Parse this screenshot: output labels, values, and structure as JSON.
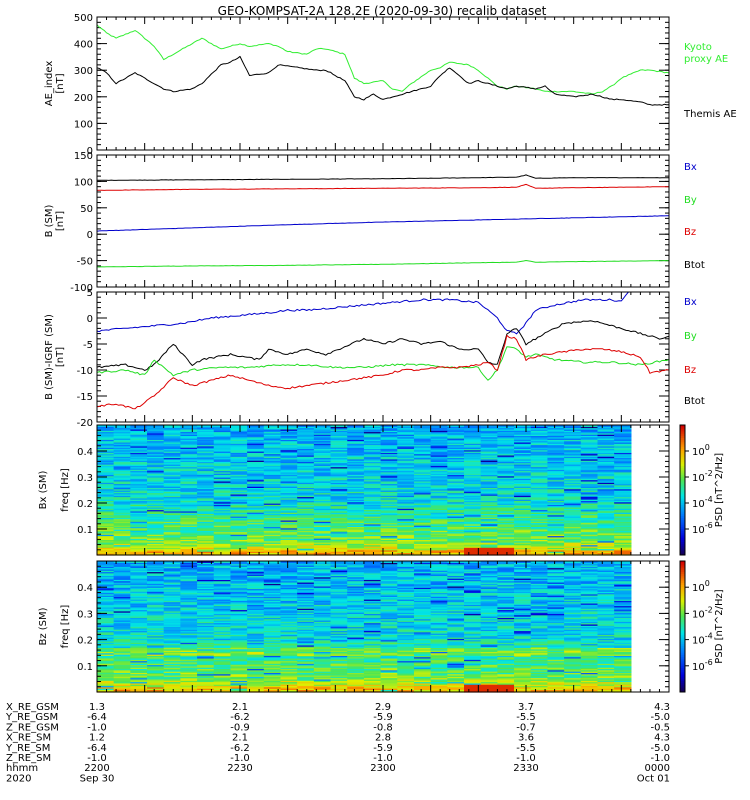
{
  "title": "GEO-KOMPSAT-2A 128.2E (2020-09-30) recalib dataset",
  "colors": {
    "black": "#000000",
    "green": "#22dd22",
    "red": "#dd0000",
    "blue": "#0000cc",
    "kyoto": "#33ee33"
  },
  "chart_data": [
    {
      "type": "line",
      "panel": "ae",
      "ylabel": "AE_index [nT]",
      "ylim": [
        0,
        500
      ],
      "yticks": [
        "0",
        "100",
        "200",
        "300",
        "400",
        "500"
      ],
      "x_minutes": [
        0,
        60
      ],
      "legend": [
        {
          "name": "Kyoto proxy AE",
          "lines": [
            "Kyoto",
            "proxy AE"
          ],
          "color": "#33ee33"
        },
        {
          "name": "Themis AE",
          "lines": [
            "Themis AE"
          ],
          "color": "#000000"
        }
      ],
      "series": [
        {
          "name": "Kyoto proxy AE",
          "color": "#33ee33",
          "x": [
            0,
            1,
            2,
            4,
            6,
            7,
            8,
            10,
            11,
            13,
            15,
            16,
            18,
            19,
            20,
            22,
            23,
            24,
            26,
            27,
            28,
            30,
            31,
            32,
            33,
            35,
            36,
            37,
            39,
            40,
            42,
            43,
            44,
            46,
            47,
            48,
            50,
            52,
            53,
            54,
            55,
            57,
            58,
            60
          ],
          "y": [
            470,
            440,
            420,
            450,
            390,
            340,
            360,
            400,
            420,
            380,
            400,
            390,
            400,
            390,
            370,
            360,
            380,
            380,
            360,
            270,
            250,
            260,
            230,
            220,
            250,
            300,
            310,
            330,
            320,
            300,
            240,
            230,
            240,
            230,
            220,
            220,
            220,
            210,
            220,
            240,
            270,
            300,
            300,
            290
          ]
        },
        {
          "name": "Themis AE",
          "color": "#000000",
          "x": [
            0,
            1,
            2,
            4,
            5,
            7,
            8,
            10,
            11,
            13,
            14,
            15,
            16,
            18,
            19,
            21,
            23,
            24,
            26,
            27,
            28,
            29,
            30,
            32,
            33,
            35,
            36,
            37,
            38,
            39,
            40,
            42,
            43,
            44,
            46,
            47,
            48,
            50,
            52,
            53,
            54,
            55,
            57,
            58,
            60
          ],
          "y": [
            310,
            290,
            250,
            290,
            270,
            230,
            220,
            230,
            250,
            320,
            330,
            350,
            280,
            290,
            320,
            310,
            300,
            300,
            260,
            200,
            190,
            210,
            190,
            210,
            220,
            240,
            280,
            310,
            280,
            250,
            260,
            240,
            230,
            240,
            230,
            240,
            210,
            200,
            210,
            200,
            190,
            190,
            180,
            170,
            170
          ]
        }
      ]
    },
    {
      "type": "line",
      "panel": "b",
      "ylabel": "B (SM) [nT]",
      "ylim": [
        -100,
        150
      ],
      "yticks": [
        "-100",
        "-50",
        "0",
        "50",
        "100",
        "150"
      ],
      "x_minutes": [
        0,
        60
      ],
      "legend": [
        {
          "name": "Bx",
          "lines": [
            "Bx"
          ],
          "color": "#0000cc"
        },
        {
          "name": "By",
          "lines": [
            "By"
          ],
          "color": "#22dd22"
        },
        {
          "name": "Bz",
          "lines": [
            "Bz"
          ],
          "color": "#dd0000"
        },
        {
          "name": "Btot",
          "lines": [
            "Btot"
          ],
          "color": "#000000"
        }
      ],
      "series": [
        {
          "name": "Btot",
          "color": "#000000",
          "x": [
            0,
            10,
            20,
            30,
            40,
            44,
            45,
            46,
            50,
            60
          ],
          "y": [
            102,
            103,
            104,
            105,
            107,
            108,
            112,
            106,
            107,
            107
          ]
        },
        {
          "name": "Bz",
          "color": "#dd0000",
          "x": [
            0,
            10,
            20,
            30,
            40,
            44,
            45,
            46,
            50,
            60
          ],
          "y": [
            83,
            85,
            86,
            87,
            88,
            89,
            94,
            87,
            88,
            90
          ]
        },
        {
          "name": "Bx",
          "color": "#0000cc",
          "x": [
            0,
            10,
            20,
            30,
            40,
            50,
            60
          ],
          "y": [
            6,
            12,
            18,
            23,
            27,
            31,
            35
          ]
        },
        {
          "name": "By",
          "color": "#22dd22",
          "x": [
            0,
            10,
            20,
            30,
            40,
            44,
            45,
            46,
            50,
            60
          ],
          "y": [
            -62,
            -60,
            -59,
            -57,
            -54,
            -53,
            -50,
            -53,
            -52,
            -50
          ]
        }
      ]
    },
    {
      "type": "line",
      "panel": "dbi",
      "ylabel": "B (SM)-IGRF (SM) [nT]",
      "ylim": [
        -20,
        5
      ],
      "yticks": [
        "-20",
        "-15",
        "-10",
        "-5",
        "0",
        "5"
      ],
      "x_minutes": [
        0,
        60
      ],
      "legend": [
        {
          "name": "Bx",
          "lines": [
            "Bx"
          ],
          "color": "#0000cc"
        },
        {
          "name": "By",
          "lines": [
            "By"
          ],
          "color": "#22dd22"
        },
        {
          "name": "Bz",
          "lines": [
            "Bz"
          ],
          "color": "#dd0000"
        },
        {
          "name": "Btot",
          "lines": [
            "Btot"
          ],
          "color": "#000000"
        }
      ],
      "series": [
        {
          "name": "Bx",
          "color": "#0000cc",
          "x": [
            0,
            3,
            6,
            9,
            12,
            15,
            18,
            20,
            22,
            25,
            28,
            31,
            34,
            37,
            40,
            42,
            43,
            44,
            45,
            46,
            48,
            51,
            54,
            55,
            56,
            58,
            60
          ],
          "y": [
            -2.5,
            -2,
            -1.5,
            -1,
            0,
            0.5,
            1,
            1.5,
            1.5,
            2,
            2.5,
            3,
            3.5,
            3.5,
            3,
            0,
            -2.5,
            -3,
            -1,
            1.5,
            2.5,
            3.5,
            3.5,
            3.2,
            6,
            6,
            5
          ]
        },
        {
          "name": "Btot",
          "color": "#000000",
          "x": [
            0,
            3,
            5,
            6,
            8,
            10,
            11,
            14,
            17,
            18,
            20,
            22,
            24,
            26,
            28,
            30,
            32,
            34,
            36,
            38,
            40,
            41,
            42,
            43,
            44,
            45,
            47,
            49,
            52,
            55,
            57,
            59,
            60
          ],
          "y": [
            -9.5,
            -9,
            -10,
            -9,
            -5,
            -9,
            -8,
            -7,
            -8,
            -6,
            -7,
            -6,
            -7,
            -5.5,
            -4,
            -5,
            -4,
            -5,
            -4.5,
            -6,
            -6,
            -8.5,
            -9,
            -3,
            -2,
            -5,
            -3,
            -1,
            -0.5,
            -2,
            -3,
            -4,
            -3.5
          ]
        },
        {
          "name": "By",
          "color": "#22dd22",
          "x": [
            0,
            3,
            5,
            6,
            8,
            10,
            13,
            16,
            19,
            22,
            25,
            28,
            31,
            34,
            37,
            40,
            41,
            42,
            43,
            44,
            45,
            46,
            48,
            51,
            54,
            57,
            60
          ],
          "y": [
            -10.5,
            -10,
            -11,
            -8,
            -11,
            -10,
            -9.5,
            -9.5,
            -9,
            -9,
            -9.5,
            -9.5,
            -9,
            -9,
            -9.5,
            -9.5,
            -12,
            -10,
            -5.5,
            -6,
            -7.5,
            -7,
            -8,
            -8.5,
            -8.5,
            -9,
            -8
          ]
        },
        {
          "name": "Bz",
          "color": "#dd0000",
          "x": [
            0,
            2,
            4,
            6,
            8,
            10,
            12,
            14,
            16,
            18,
            20,
            22,
            24,
            26,
            28,
            30,
            32,
            34,
            36,
            38,
            40,
            41,
            42,
            43,
            44,
            45,
            47,
            49,
            51,
            53,
            55,
            57,
            58,
            60
          ],
          "y": [
            -17,
            -16.5,
            -17.5,
            -15,
            -11.5,
            -13,
            -12,
            -11,
            -12,
            -13,
            -13.5,
            -13,
            -12.5,
            -12,
            -11.5,
            -11,
            -10,
            -10,
            -9.5,
            -9.5,
            -9,
            -8.5,
            -10,
            -3.5,
            -4,
            -8,
            -7,
            -6.5,
            -6,
            -6,
            -6.5,
            -7.5,
            -10.5,
            -10
          ]
        }
      ]
    },
    {
      "type": "heatmap",
      "panel": "specx",
      "ylabel": "Bx (SM)",
      "ylabel2": "freq [Hz]",
      "ylim": [
        0,
        0.5
      ],
      "yticks": [
        "0.1",
        "0.2",
        "0.3",
        "0.4"
      ],
      "colorbar_label": "PSD [nT^2/Hz]",
      "colorbar_range": [
        -8,
        2
      ],
      "colorbar_ticks": [
        0,
        -2,
        -4,
        -6
      ]
    },
    {
      "type": "heatmap",
      "panel": "specz",
      "ylabel": "Bz (SM)",
      "ylabel2": "freq [Hz]",
      "ylim": [
        0,
        0.5
      ],
      "yticks": [
        "0.1",
        "0.2",
        "0.3",
        "0.4"
      ],
      "colorbar_label": "PSD [nT^2/Hz]",
      "colorbar_range": [
        -8,
        2
      ],
      "colorbar_ticks": [
        0,
        -2,
        -4,
        -6
      ]
    }
  ],
  "orbit": {
    "row_labels": [
      "X_RE_GSM",
      "Y_RE_GSM",
      "Z_RE_GSM",
      "X_RE_SM",
      "Y_RE_SM",
      "Z_RE_SM",
      "hhmm",
      "2020"
    ],
    "columns": [
      [
        "1.3",
        "-6.4",
        "-1.0",
        "1.2",
        "-6.4",
        "-1.0",
        "2200",
        "Sep 30"
      ],
      [
        "2.1",
        "-6.2",
        "-0.9",
        "2.1",
        "-6.2",
        "-1.0",
        "2230",
        ""
      ],
      [
        "2.9",
        "-5.9",
        "-0.8",
        "2.8",
        "-5.9",
        "-1.0",
        "2300",
        ""
      ],
      [
        "3.7",
        "-5.5",
        "-0.7",
        "3.6",
        "-5.5",
        "-1.0",
        "2330",
        ""
      ],
      [
        "4.3",
        "-5.0",
        "-0.5",
        "4.3",
        "-5.0",
        "-1.0",
        "0000",
        "Oct 01"
      ]
    ]
  }
}
